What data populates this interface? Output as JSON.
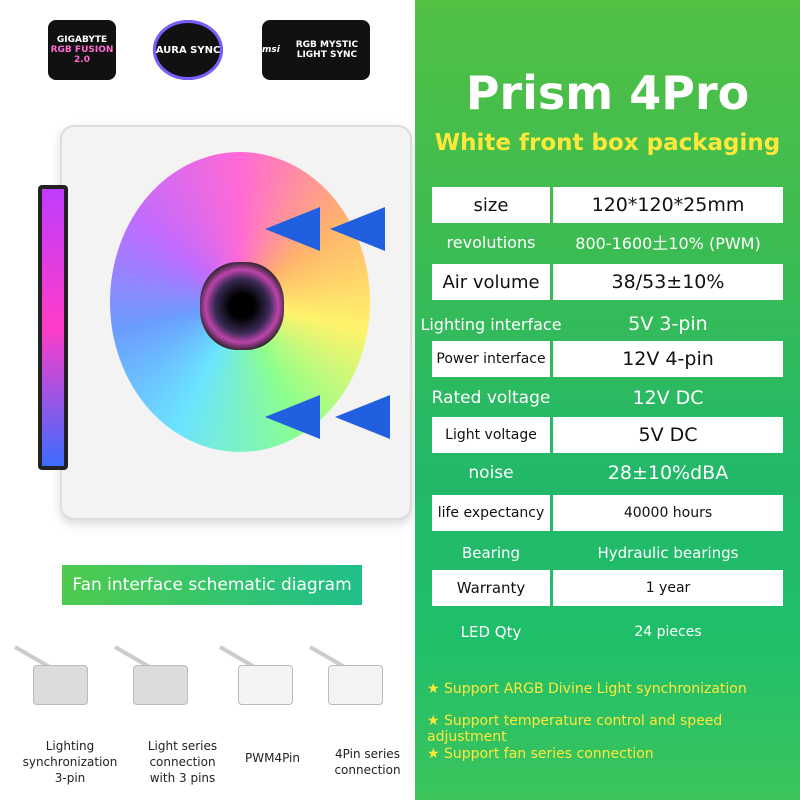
{
  "logos": [
    {
      "brand": "GIGABYTE",
      "text": "RGB FUSION 2.0"
    },
    {
      "brand": "ASUS",
      "text": "AURA SYNC"
    },
    {
      "brand": "msi",
      "text": "RGB MYSTIC LIGHT SYNC"
    }
  ],
  "title": "Prism 4Pro",
  "subtitle": "White front box packaging",
  "specs": [
    {
      "label": "size",
      "value": "120*120*25mm",
      "boxed": true
    },
    {
      "label": "revolutions",
      "value": "800-1600土10% (PWM)",
      "boxed": false
    },
    {
      "label": "Air volume",
      "value": "38/53±10%",
      "boxed": true
    },
    {
      "label": "Lighting interface",
      "value": "5V 3-pin",
      "boxed": false
    },
    {
      "label": "Power interface",
      "value": "12V 4-pin",
      "boxed": true
    },
    {
      "label": "Rated voltage",
      "value": "12V DC",
      "boxed": false
    },
    {
      "label": "Light voltage",
      "value": "5V DC",
      "boxed": true
    },
    {
      "label": "noise",
      "value": "28±10%dBA",
      "boxed": false
    },
    {
      "label": "life expectancy",
      "value": "40000 hours",
      "boxed": true
    },
    {
      "label": "Bearing",
      "value": "Hydraulic bearings",
      "boxed": false
    },
    {
      "label": "Warranty",
      "value": "1 year",
      "boxed": true
    },
    {
      "label": "LED Qty",
      "value": "24 pieces",
      "boxed": false
    }
  ],
  "features": [
    "★ Support ARGB Divine Light synchronization",
    "★ Support temperature control and speed adjustment",
    "★ Support fan series connection"
  ],
  "banner": "Fan interface schematic diagram",
  "connectors": [
    "Lighting\nsynchronization\n3-pin",
    "Light series\nconnection\nwith 3 pins",
    "PWM4Pin",
    "4Pin series\nconnection"
  ]
}
